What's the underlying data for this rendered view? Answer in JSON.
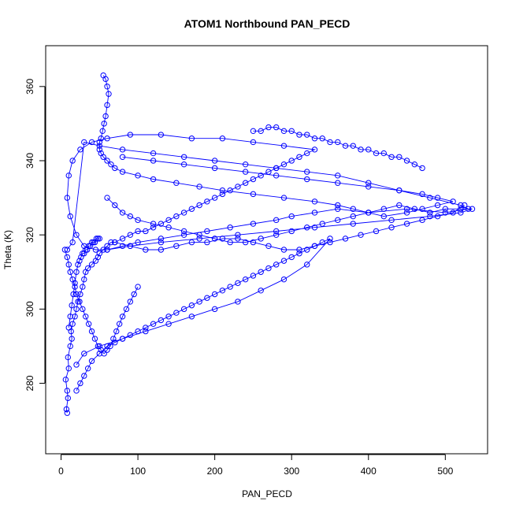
{
  "chart_data": {
    "type": "scatter",
    "title": "ATOM1 Northbound PAN_PECD",
    "xlabel": "PAN_PECD",
    "ylabel": "Theta (K)",
    "xlim": [
      -20,
      555
    ],
    "ylim": [
      261,
      371
    ],
    "x_ticks": [
      0,
      100,
      200,
      300,
      400,
      500
    ],
    "y_ticks": [
      280,
      300,
      320,
      340,
      360
    ],
    "grid": false,
    "legend": "none",
    "series_color": "#0000ff",
    "connected": true,
    "marker": "open-circle",
    "series": [
      {
        "x": [
          8,
          7,
          9,
          8,
          6,
          10,
          9,
          12,
          14,
          13,
          15,
          18,
          20,
          22,
          25,
          28,
          30,
          32,
          35,
          40,
          45,
          48,
          50,
          55,
          60,
          65,
          70,
          80,
          90,
          100,
          110,
          120,
          130,
          140,
          150,
          160,
          170,
          180,
          190,
          200,
          210,
          220,
          230,
          240,
          250,
          260,
          270,
          280,
          290,
          300,
          310,
          320,
          330,
          290,
          250,
          210,
          170,
          130,
          90,
          60,
          40,
          25,
          15,
          10,
          8,
          12,
          20,
          30,
          45,
          60,
          80,
          100,
          130,
          160,
          190,
          220,
          250,
          280,
          300,
          330,
          360,
          400,
          450,
          500,
          530,
          520,
          480,
          440,
          400,
          360,
          320,
          280,
          240,
          200,
          160,
          120,
          80,
          50,
          30,
          15,
          8
        ],
        "y": [
          272,
          273,
          276,
          278,
          281,
          284,
          287,
          290,
          292,
          294,
          296,
          298,
          300,
          302,
          304,
          306,
          308,
          310,
          311,
          312,
          313,
          314,
          315,
          316,
          317,
          318,
          318,
          319,
          320,
          321,
          321,
          322,
          323,
          324,
          325,
          326,
          327,
          328,
          329,
          330,
          331,
          332,
          333,
          334,
          335,
          336,
          337,
          338,
          339,
          340,
          341,
          342,
          343,
          344,
          345,
          346,
          346,
          347,
          347,
          346,
          345,
          343,
          340,
          336,
          330,
          325,
          320,
          317,
          316,
          316,
          317,
          318,
          319,
          320,
          321,
          322,
          323,
          324,
          325,
          326,
          327,
          326,
          327,
          326,
          327,
          328,
          330,
          332,
          334,
          336,
          337,
          338,
          339,
          340,
          341,
          342,
          343,
          344,
          345,
          318,
          316
        ]
      },
      {
        "x": [
          55,
          58,
          60,
          62,
          60,
          58,
          56,
          54,
          52,
          50,
          50,
          52,
          55,
          60,
          65,
          70,
          80,
          100,
          120,
          150,
          180,
          210,
          250,
          290,
          330,
          360,
          380,
          400,
          420,
          450,
          470,
          490,
          510,
          490,
          470,
          440,
          400,
          360,
          320,
          280,
          240,
          200,
          160,
          120,
          80
        ],
        "y": [
          363,
          362,
          360,
          358,
          355,
          352,
          350,
          348,
          346,
          345,
          343,
          342,
          341,
          340,
          339,
          338,
          337,
          336,
          335,
          334,
          333,
          332,
          331,
          330,
          329,
          328,
          327,
          326,
          325,
          326,
          327,
          328,
          329,
          330,
          331,
          332,
          333,
          334,
          335,
          336,
          337,
          338,
          339,
          340,
          341
        ]
      },
      {
        "x": [
          20,
          25,
          30,
          35,
          40,
          50,
          60,
          70,
          80,
          90,
          100,
          110,
          120,
          130,
          140,
          150,
          160,
          170,
          180,
          190,
          200,
          210,
          220,
          230,
          240,
          250,
          260,
          270,
          280,
          290,
          300,
          310,
          320,
          330,
          340,
          350,
          320,
          290,
          260,
          230,
          200,
          170,
          140,
          110,
          80,
          50,
          30,
          20
        ],
        "y": [
          278,
          280,
          282,
          284,
          286,
          288,
          290,
          291,
          292,
          293,
          294,
          295,
          296,
          297,
          298,
          299,
          300,
          301,
          302,
          303,
          304,
          305,
          306,
          307,
          308,
          309,
          310,
          311,
          312,
          313,
          314,
          315,
          316,
          317,
          318,
          319,
          312,
          308,
          305,
          302,
          300,
          298,
          296,
          294,
          292,
          290,
          288,
          285
        ]
      },
      {
        "x": [
          5,
          8,
          10,
          12,
          15,
          18,
          20,
          24,
          28,
          32,
          36,
          40,
          44,
          48,
          52,
          56,
          60,
          64,
          68,
          72,
          76,
          80,
          85,
          90,
          95,
          100
        ],
        "y": [
          316,
          314,
          312,
          310,
          308,
          306,
          304,
          302,
          300,
          298,
          296,
          294,
          292,
          290,
          289,
          288,
          289,
          290,
          292,
          294,
          296,
          298,
          300,
          302,
          304,
          306
        ]
      },
      {
        "x": [
          60,
          70,
          80,
          90,
          100,
          120,
          140,
          160,
          180,
          200,
          220,
          240,
          260,
          280,
          300,
          320,
          340,
          360,
          380,
          400,
          420,
          440,
          460,
          480,
          500,
          520,
          535,
          520,
          480,
          430,
          380,
          330,
          280,
          230,
          180,
          130,
          90,
          60
        ],
        "y": [
          330,
          328,
          326,
          325,
          324,
          323,
          322,
          321,
          320,
          319,
          318,
          318,
          319,
          320,
          321,
          322,
          323,
          324,
          325,
          326,
          327,
          328,
          327,
          326,
          327,
          327,
          327,
          326,
          325,
          324,
          323,
          322,
          321,
          320,
          319,
          318,
          317,
          316
        ]
      },
      {
        "x": [
          250,
          260,
          270,
          280,
          290,
          300,
          310,
          320,
          330,
          340,
          350,
          360,
          370,
          380,
          390,
          400,
          410,
          420,
          430,
          440,
          450,
          460,
          470
        ],
        "y": [
          348,
          348,
          349,
          349,
          348,
          348,
          347,
          347,
          346,
          346,
          345,
          345,
          344,
          344,
          343,
          343,
          342,
          342,
          341,
          341,
          340,
          339,
          338
        ]
      },
      {
        "x": [
          10,
          12,
          14,
          16,
          18,
          20,
          22,
          24,
          26,
          28,
          30,
          32,
          34,
          36,
          38,
          40,
          42,
          44,
          46,
          48,
          50
        ],
        "y": [
          295,
          298,
          301,
          304,
          307,
          310,
          312,
          313,
          314,
          315,
          315,
          316,
          316,
          317,
          317,
          318,
          318,
          318,
          319,
          319,
          319
        ]
      },
      {
        "x": [
          70,
          90,
          110,
          130,
          150,
          170,
          190,
          210,
          230,
          250,
          270,
          290,
          310,
          330,
          350,
          370,
          390,
          410,
          430,
          450,
          470,
          490,
          510,
          525
        ],
        "y": [
          318,
          317,
          316,
          316,
          317,
          318,
          318,
          319,
          319,
          318,
          317,
          316,
          316,
          317,
          318,
          319,
          320,
          321,
          322,
          323,
          324,
          325,
          326,
          328
        ]
      }
    ]
  }
}
